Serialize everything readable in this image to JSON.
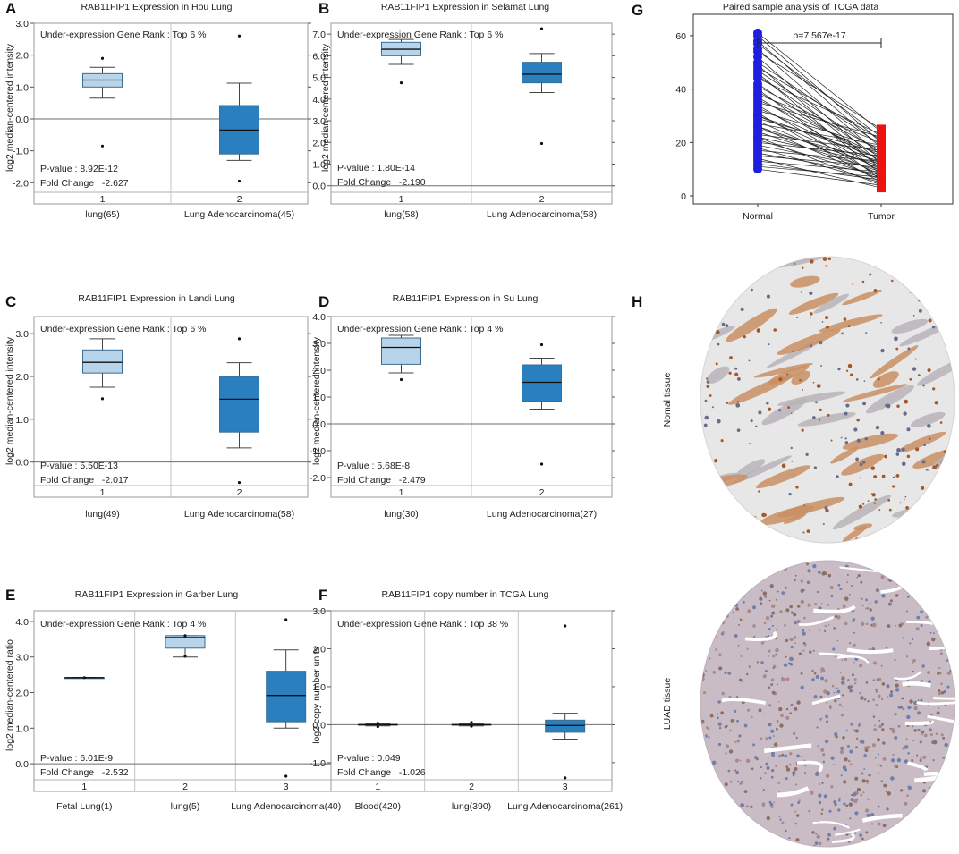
{
  "panel_labels": [
    "A",
    "B",
    "C",
    "D",
    "E",
    "F",
    "G",
    "H"
  ],
  "histology": {
    "normal_label": "Nomal tissue",
    "tumor_label": "LUAD tissue"
  },
  "chart_data": [
    {
      "id": "A",
      "type": "box",
      "title": "RAB11FIP1 Expression in Hou Lung",
      "ylabel": "log2 median-centered intensity",
      "ylim": [
        -2.3,
        3.0
      ],
      "yticks": [
        -2.0,
        -1.0,
        0.0,
        1.0,
        2.0,
        3.0
      ],
      "yticklabels": [
        "-2.0",
        "-1.0",
        "0.0",
        "1.0",
        "2.0",
        "3.0"
      ],
      "rank_text": "Under-expression Gene Rank : Top 6 %",
      "pvalue_text": "P-value : 8.92E-12",
      "fold_text": "Fold Change : -2.627",
      "groups": [
        {
          "index": "1",
          "name": "lung(65)",
          "color": "#b8d4ea",
          "min": 0.65,
          "q1": 1.0,
          "median": 1.22,
          "q3": 1.42,
          "max": 1.62,
          "outliers": [
            1.9,
            -0.85
          ]
        },
        {
          "index": "2",
          "name": "Lung Adenocarcinoma(45)",
          "color": "#2a7fbf",
          "min": -1.3,
          "q1": -1.1,
          "median": -0.35,
          "q3": 0.42,
          "max": 1.12,
          "outliers": [
            2.6,
            -1.95
          ]
        }
      ]
    },
    {
      "id": "B",
      "type": "box",
      "title": "RAB11FIP1 Expression in Selamat Lung",
      "ylabel": "log2 median-centered intensity",
      "ylim": [
        -0.3,
        7.5
      ],
      "yticks": [
        0.0,
        1.0,
        2.0,
        3.0,
        4.0,
        5.0,
        6.0,
        7.0
      ],
      "yticklabels": [
        "0.0",
        "1.0",
        "2.0",
        "3.0",
        "4.0",
        "5.0",
        "6.0",
        "7.0"
      ],
      "rank_text": "Under-expression Gene Rank : Top 6 %",
      "pvalue_text": "P-value : 1.80E-14",
      "fold_text": "Fold Change : -2.190",
      "groups": [
        {
          "index": "1",
          "name": "lung(58)",
          "color": "#b8d4ea",
          "min": 5.6,
          "q1": 6.0,
          "median": 6.3,
          "q3": 6.62,
          "max": 6.75,
          "outliers": [
            4.75
          ]
        },
        {
          "index": "2",
          "name": "Lung Adenocarcinoma(58)",
          "color": "#2a7fbf",
          "min": 4.3,
          "q1": 4.75,
          "median": 5.15,
          "q3": 5.7,
          "max": 6.1,
          "outliers": [
            7.25,
            1.95
          ]
        }
      ]
    },
    {
      "id": "C",
      "type": "box",
      "title": "RAB11FIP1 Expression in Landi Lung",
      "ylabel": "log2 median-centered intensity",
      "ylim": [
        -0.55,
        3.4
      ],
      "yticks": [
        0.0,
        1.0,
        2.0,
        3.0
      ],
      "yticklabels": [
        "0.0",
        "1.0",
        "2.0",
        "3.0"
      ],
      "rank_text": "Under-expression Gene Rank : Top 6 %",
      "pvalue_text": "P-value : 5.50E-13",
      "fold_text": "Fold Change : -2.017",
      "groups": [
        {
          "index": "1",
          "name": "lung(49)",
          "color": "#b8d4ea",
          "min": 1.75,
          "q1": 2.08,
          "median": 2.33,
          "q3": 2.62,
          "max": 2.88,
          "outliers": [
            1.48
          ]
        },
        {
          "index": "2",
          "name": "Lung Adenocarcinoma(58)",
          "color": "#2a7fbf",
          "min": 0.33,
          "q1": 0.7,
          "median": 1.47,
          "q3": 2.0,
          "max": 2.32,
          "outliers": [
            2.88,
            -0.48
          ]
        }
      ]
    },
    {
      "id": "D",
      "type": "box",
      "title": "RAB11FIP1 Expression in Su Lung",
      "ylabel": "log2 median-centered intensity",
      "ylim": [
        -2.3,
        4.0
      ],
      "yticks": [
        -2.0,
        -1.0,
        0.0,
        1.0,
        2.0,
        3.0,
        4.0
      ],
      "yticklabels": [
        "-2.0",
        "-1.0",
        "0.0",
        "1.0",
        "2.0",
        "3.0",
        "4.0"
      ],
      "rank_text": "Under-expression Gene Rank : Top 4 %",
      "pvalue_text": "P-value : 5.68E-8",
      "fold_text": "Fold Change : -2.479",
      "groups": [
        {
          "index": "1",
          "name": "lung(30)",
          "color": "#b8d4ea",
          "min": 1.9,
          "q1": 2.22,
          "median": 2.85,
          "q3": 3.2,
          "max": 3.3,
          "outliers": [
            1.65
          ]
        },
        {
          "index": "2",
          "name": "Lung Adenocarcinoma(27)",
          "color": "#2a7fbf",
          "min": 0.55,
          "q1": 0.85,
          "median": 1.55,
          "q3": 2.2,
          "max": 2.45,
          "outliers": [
            2.95,
            -1.5
          ]
        }
      ]
    },
    {
      "id": "E",
      "type": "box",
      "title": "RAB11FIP1 Expression in Garber Lung",
      "ylabel": "log2 median-centered ratio",
      "ylim": [
        -0.45,
        4.3
      ],
      "yticks": [
        0.0,
        1.0,
        2.0,
        3.0,
        4.0
      ],
      "yticklabels": [
        "0.0",
        "1.0",
        "2.0",
        "3.0",
        "4.0"
      ],
      "rank_text": "Under-expression Gene Rank : Top 4 %",
      "pvalue_text": "P-value : 6.01E-9",
      "fold_text": "Fold Change : -2.532",
      "groups": [
        {
          "index": "1",
          "name": "Fetal Lung(1)",
          "color": "#b8d4ea",
          "min": 2.42,
          "q1": 2.42,
          "median": 2.42,
          "q3": 2.42,
          "max": 2.42,
          "outliers": [
            2.42
          ]
        },
        {
          "index": "2",
          "name": "lung(5)",
          "color": "#b8d4ea",
          "min": 3.0,
          "q1": 3.25,
          "median": 3.55,
          "q3": 3.6,
          "max": 3.6,
          "outliers": [
            3.6,
            3.02
          ]
        },
        {
          "index": "3",
          "name": "Lung Adenocarcinoma(40)",
          "color": "#2a7fbf",
          "min": 1.0,
          "q1": 1.18,
          "median": 1.92,
          "q3": 2.6,
          "max": 3.2,
          "outliers": [
            4.05,
            -0.35
          ]
        }
      ]
    },
    {
      "id": "F",
      "type": "box",
      "title": "RAB11FIP1 copy number in TCGA Lung",
      "ylabel": "log2 copy number units",
      "ylim": [
        -1.45,
        3.0
      ],
      "yticks": [
        -1.0,
        0.0,
        1.0,
        2.0,
        3.0
      ],
      "yticklabels": [
        "-1.0",
        "0.0",
        "1.0",
        "2.0",
        "3.0"
      ],
      "rank_text": "Under-expression Gene Rank : Top 38 %",
      "pvalue_text": "P-value : 0.049",
      "fold_text": "Fold Change : -1.026",
      "groups": [
        {
          "index": "1",
          "name": "Blood(420)",
          "color": "#b8d4ea",
          "min": -0.03,
          "q1": -0.01,
          "median": 0.0,
          "q3": 0.01,
          "max": 0.03,
          "outliers": [
            0.04,
            -0.05
          ]
        },
        {
          "index": "2",
          "name": "lung(390)",
          "color": "#b8d4ea",
          "min": -0.03,
          "q1": -0.01,
          "median": 0.0,
          "q3": 0.01,
          "max": 0.03,
          "outliers": [
            0.06,
            -0.04
          ]
        },
        {
          "index": "3",
          "name": "Lung Adenocarcinoma(261)",
          "color": "#2a7fbf",
          "min": -0.38,
          "q1": -0.2,
          "median": -0.02,
          "q3": 0.12,
          "max": 0.3,
          "outliers": [
            2.6,
            -1.4
          ]
        }
      ]
    },
    {
      "id": "G",
      "type": "paired-scatter",
      "title": "Paired sample analysis of TCGA data",
      "ylim": [
        -3,
        68
      ],
      "yticks": [
        0,
        20,
        40,
        60
      ],
      "yticklabels": [
        "0",
        "20",
        "40",
        "60"
      ],
      "categories": [
        "Normal",
        "Tumor"
      ],
      "colors": {
        "normal": "#1f1fe0",
        "tumor": "#ee1111"
      },
      "p_text": "p=7.567e-17",
      "pairs": [
        [
          61,
          24
        ],
        [
          60,
          20
        ],
        [
          58,
          18
        ],
        [
          57,
          22
        ],
        [
          55,
          15
        ],
        [
          54,
          25
        ],
        [
          52,
          12
        ],
        [
          50,
          19
        ],
        [
          49,
          10
        ],
        [
          48,
          21
        ],
        [
          47,
          16
        ],
        [
          46,
          8
        ],
        [
          45,
          14
        ],
        [
          44,
          23
        ],
        [
          42,
          11
        ],
        [
          41,
          17
        ],
        [
          40,
          6
        ],
        [
          39,
          13
        ],
        [
          38,
          20
        ],
        [
          37,
          9
        ],
        [
          36,
          15
        ],
        [
          35,
          22
        ],
        [
          34,
          7
        ],
        [
          33,
          12
        ],
        [
          32,
          18
        ],
        [
          31,
          5
        ],
        [
          30,
          14
        ],
        [
          30,
          10
        ],
        [
          29,
          16
        ],
        [
          28,
          8
        ],
        [
          27,
          19
        ],
        [
          26,
          11
        ],
        [
          26,
          6
        ],
        [
          25,
          13
        ],
        [
          24,
          9
        ],
        [
          23,
          17
        ],
        [
          22,
          4
        ],
        [
          22,
          12
        ],
        [
          21,
          7
        ],
        [
          20,
          15
        ],
        [
          19,
          10
        ],
        [
          18,
          5
        ],
        [
          17,
          13
        ],
        [
          16,
          8
        ],
        [
          15,
          11
        ],
        [
          14,
          3
        ],
        [
          13,
          9
        ],
        [
          12,
          6
        ],
        [
          11,
          7
        ],
        [
          10,
          4
        ]
      ]
    }
  ]
}
